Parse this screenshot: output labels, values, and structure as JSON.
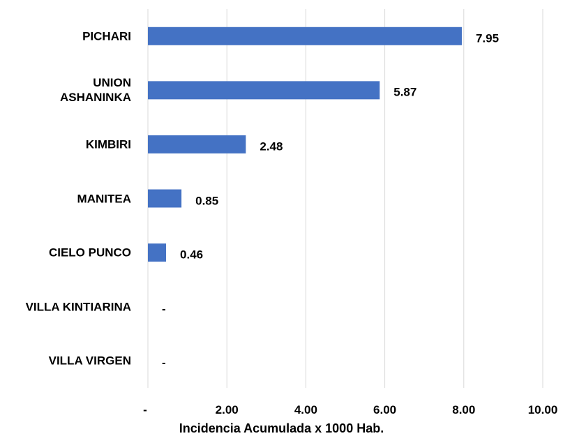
{
  "chart_data": {
    "type": "barh",
    "categories": [
      "PICHARI",
      "UNION\nASHANINKA",
      "KIMBIRI",
      "MANITEA",
      "CIELO PUNCO",
      "VILLA KINTIARINA",
      "VILLA VIRGEN"
    ],
    "values": [
      7.95,
      5.87,
      2.48,
      0.85,
      0.46,
      0,
      0
    ],
    "value_labels": [
      "7.95",
      "5.87",
      "2.48",
      "0.85",
      "0.46",
      "-",
      "-"
    ],
    "color": "#4472c4",
    "xlabel": "Incidencia Acumulada x 1000 Hab.",
    "xlim": [
      0,
      10
    ],
    "xticks": [
      {
        "value": 0,
        "label": "-"
      },
      {
        "value": 2,
        "label": "2.00"
      },
      {
        "value": 4,
        "label": "4.00"
      },
      {
        "value": 6,
        "label": "6.00"
      },
      {
        "value": 8,
        "label": "8.00"
      },
      {
        "value": 10,
        "label": "10.00"
      }
    ],
    "grid": true
  }
}
